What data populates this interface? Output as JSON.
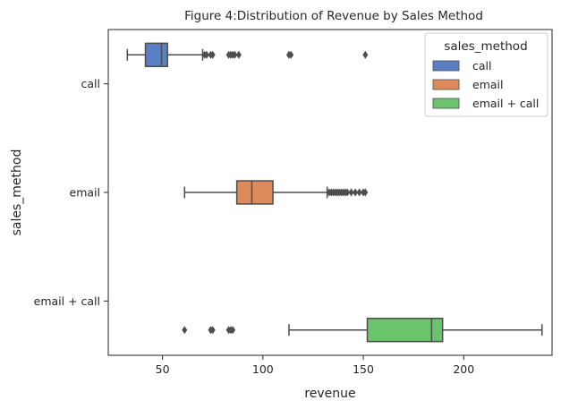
{
  "chart_data": {
    "type": "boxplot",
    "orientation": "horizontal",
    "title": "Figure 4:Distribution of Revenue by Sales Method",
    "xlabel": "revenue",
    "ylabel": "sales_method",
    "xlim": [
      23,
      244
    ],
    "xticks": [
      50,
      100,
      150,
      200
    ],
    "categories": [
      "call",
      "email",
      "email + call"
    ],
    "grid": false,
    "legend": {
      "title": "sales_method",
      "position": "upper right",
      "entries": [
        "call",
        "email",
        "email + call"
      ]
    },
    "series": [
      {
        "name": "call",
        "color": "#5a7fc4",
        "category_index": 0,
        "whisker_low": 32.5,
        "q1": 41.5,
        "median": 49.5,
        "q3": 52.5,
        "whisker_high": 70,
        "outliers": [
          71,
          72,
          74,
          75,
          83,
          84,
          85,
          86,
          88,
          113,
          114,
          151
        ]
      },
      {
        "name": "email",
        "color": "#de8a5a",
        "category_index": 1,
        "whisker_low": 61,
        "q1": 87,
        "median": 94.5,
        "q3": 105,
        "whisker_high": 132,
        "outliers": [
          133,
          134,
          135,
          136,
          137,
          138,
          139,
          140,
          141,
          142,
          144,
          146,
          148,
          150,
          151
        ]
      },
      {
        "name": "email + call",
        "color": "#6bc46b",
        "category_index": 2,
        "whisker_low": 113,
        "q1": 152,
        "median": 184,
        "q3": 189.5,
        "whisker_high": 239,
        "outliers": [
          61,
          74,
          75,
          83,
          84,
          85
        ]
      }
    ]
  }
}
